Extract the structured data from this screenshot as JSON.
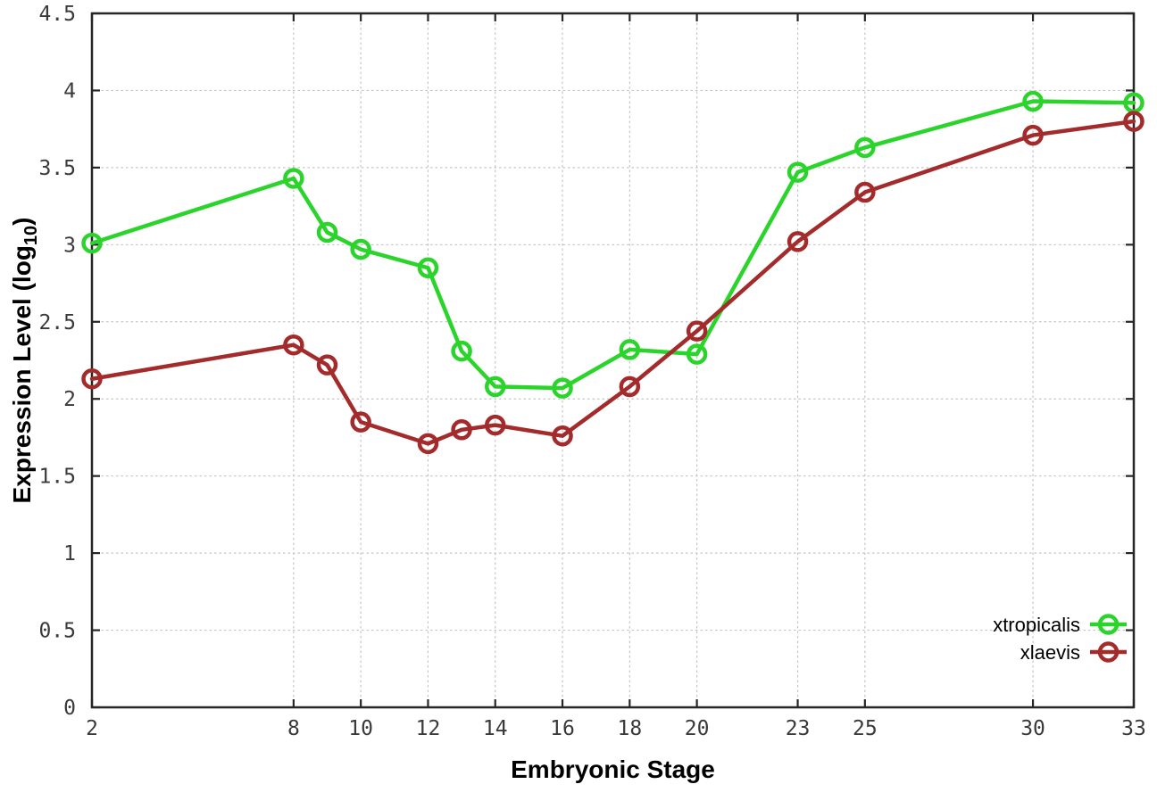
{
  "chart_data": {
    "type": "line",
    "title": "",
    "xlabel": "Embryonic Stage",
    "ylabel": "Expression Level (log10)",
    "ylabel_parts": {
      "main": "Expression Level (log",
      "sub": "10",
      "tail": ")"
    },
    "x": [
      2,
      8,
      9,
      10,
      12,
      13,
      14,
      16,
      18,
      20,
      23,
      25,
      30,
      33
    ],
    "series": [
      {
        "name": "xtropicalis",
        "color": "#2bd42b",
        "values": [
          3.01,
          3.43,
          3.08,
          2.97,
          2.85,
          2.31,
          2.08,
          2.07,
          2.32,
          2.29,
          3.47,
          3.63,
          3.93,
          3.92
        ]
      },
      {
        "name": "xlaevis",
        "color": "#a32b2b",
        "values": [
          2.13,
          2.35,
          2.22,
          1.85,
          1.71,
          1.8,
          1.83,
          1.76,
          2.08,
          2.44,
          3.02,
          3.34,
          3.71,
          3.8
        ]
      }
    ],
    "xlim": [
      2,
      33
    ],
    "ylim": [
      0,
      4.5
    ],
    "x_ticks": [
      2,
      8,
      10,
      12,
      14,
      16,
      18,
      20,
      23,
      25,
      30,
      33
    ],
    "y_ticks": [
      0,
      0.5,
      1,
      1.5,
      2,
      2.5,
      3,
      3.5,
      4,
      4.5
    ],
    "grid": true,
    "legend_position": "inside-bottom-right",
    "marker": "open-circle"
  },
  "style_colors": {
    "series_green": "#2bd42b",
    "series_red": "#a32b2b",
    "grid_line": "#c3c3c3",
    "plot_border": "#262626",
    "tick_text": "#3a3a3a",
    "label_text": "#000000",
    "background": "#ffffff"
  }
}
